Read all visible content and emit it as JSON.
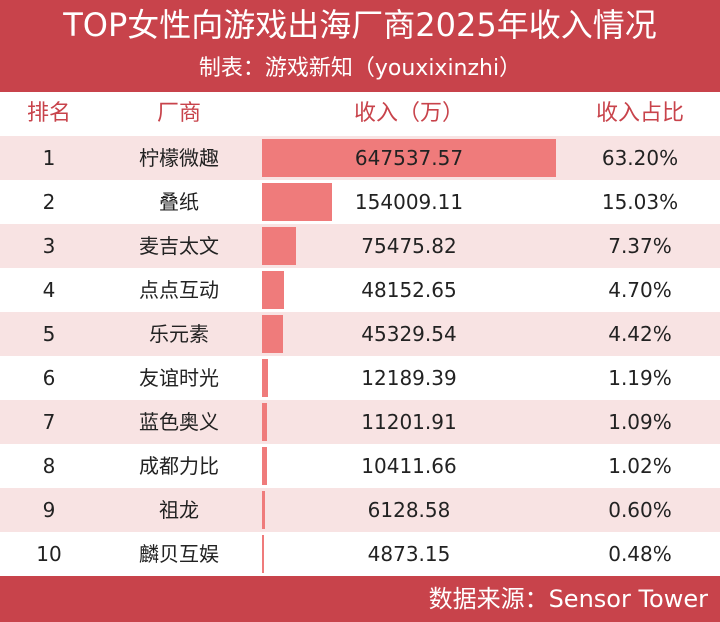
{
  "header": {
    "title": "TOP女性向游戏出海厂商2025年收入情况",
    "subtitle": "制表：游戏新知（youxixinzhi）"
  },
  "columns": {
    "rank": "排名",
    "company": "厂商",
    "revenue": "收入（万）",
    "share": "收入占比"
  },
  "footer": {
    "source": "数据来源：Sensor Tower"
  },
  "colors": {
    "accent": "#c8434b",
    "bar": "#ef7b7b",
    "stripe": "#f8e3e3"
  },
  "chart_data": {
    "type": "table",
    "title": "TOP女性向游戏出海厂商2025年收入情况",
    "subtitle": "制表：游戏新知（youxixinzhi）",
    "columns": [
      "排名",
      "厂商",
      "收入（万）",
      "收入占比"
    ],
    "rows": [
      {
        "rank": "1",
        "company": "柠檬微趣",
        "revenue": "647537.57",
        "share": "63.20%"
      },
      {
        "rank": "2",
        "company": "叠纸",
        "revenue": "154009.11",
        "share": "15.03%"
      },
      {
        "rank": "3",
        "company": "麦吉太文",
        "revenue": "75475.82",
        "share": "7.37%"
      },
      {
        "rank": "4",
        "company": "点点互动",
        "revenue": "48152.65",
        "share": "4.70%"
      },
      {
        "rank": "5",
        "company": "乐元素",
        "revenue": "45329.54",
        "share": "4.42%"
      },
      {
        "rank": "6",
        "company": "友谊时光",
        "revenue": "12189.39",
        "share": "1.19%"
      },
      {
        "rank": "7",
        "company": "蓝色奥义",
        "revenue": "11201.91",
        "share": "1.09%"
      },
      {
        "rank": "8",
        "company": "成都力比",
        "revenue": "10411.66",
        "share": "1.02%"
      },
      {
        "rank": "9",
        "company": "祖龙",
        "revenue": "6128.58",
        "share": "0.60%"
      },
      {
        "rank": "10",
        "company": "麟贝互娱",
        "revenue": "4873.15",
        "share": "0.48%"
      }
    ],
    "source": "数据来源：Sensor Tower"
  }
}
